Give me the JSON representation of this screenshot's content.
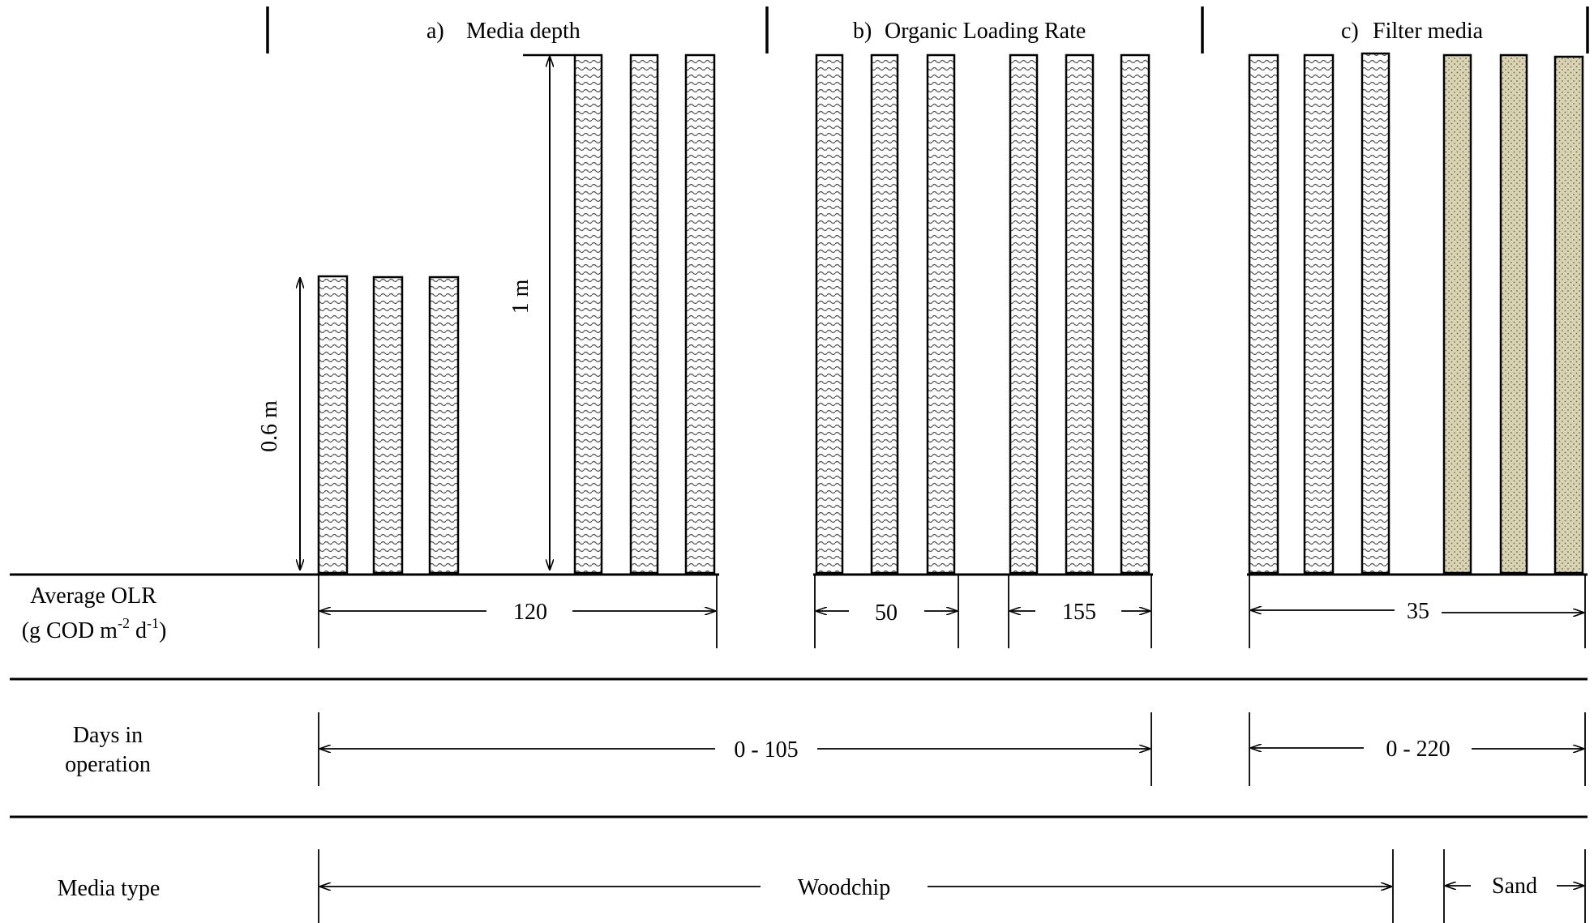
{
  "sections": {
    "a": {
      "letter": "a)",
      "title": "Media depth"
    },
    "b": {
      "letter": "b)",
      "title": "Organic Loading Rate"
    },
    "c": {
      "letter": "c)",
      "title": "Filter media"
    }
  },
  "dimensions": {
    "short_depth": "0.6 m",
    "tall_depth": "1 m"
  },
  "rows": {
    "olr": {
      "label_line1": "Average OLR",
      "label_line2_prefix": "(g COD m",
      "label_line2_sup1": "-2",
      "label_line2_mid": " d",
      "label_line2_sup2": "-1",
      "label_line2_suffix": ")",
      "values": [
        "120",
        "50",
        "155",
        "35"
      ]
    },
    "days": {
      "label_line1": "Days in",
      "label_line2": "operation",
      "values": [
        "0 - 105",
        "0 - 220"
      ]
    },
    "media": {
      "label": "Media type",
      "values": [
        "Woodchip",
        "Sand"
      ]
    }
  },
  "colors": {
    "woodchip_fill": "#ffffff",
    "woodchip_pattern": "#555555",
    "sand_fill": "#d9d3b4",
    "sand_dots": "#6b6750",
    "line": "#000000"
  },
  "patterns": {
    "woodchip": "wavy-lines",
    "sand": "dots"
  }
}
